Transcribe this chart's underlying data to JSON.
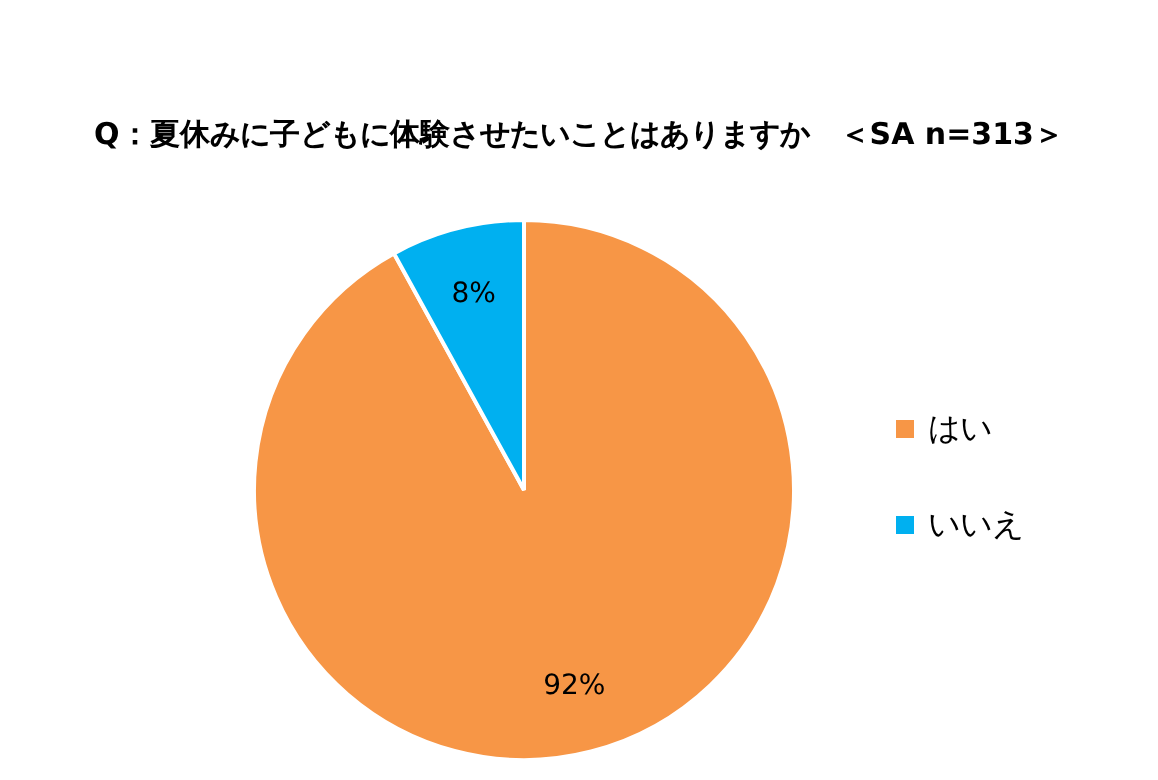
{
  "chart_data": {
    "type": "pie",
    "title": "Q：夏休みに子どもに体験させたいことはありますか　＜SA n=313＞",
    "categories": [
      "はい",
      "いいえ"
    ],
    "values": [
      92,
      8
    ],
    "colors": [
      "#f79646",
      "#00b0f0"
    ],
    "value_labels": [
      "92%",
      "8%"
    ],
    "legend": "right"
  }
}
